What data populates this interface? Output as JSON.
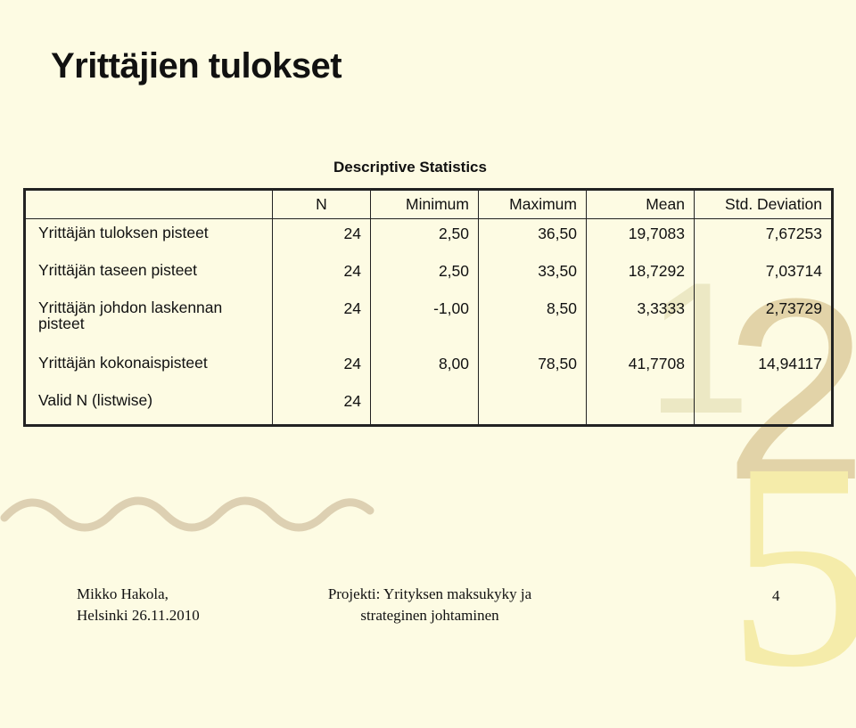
{
  "slide": {
    "title": "Yrittäjien tulokset",
    "page_number": "4"
  },
  "table": {
    "title": "Descriptive Statistics",
    "columns": [
      "N",
      "Minimum",
      "Maximum",
      "Mean",
      "Std. Deviation"
    ],
    "rows": [
      {
        "label": "Yrittäjän tuloksen pisteet",
        "values": [
          "24",
          "2,50",
          "36,50",
          "19,7083",
          "7,67253"
        ]
      },
      {
        "label": "Yrittäjän taseen pisteet",
        "values": [
          "24",
          "2,50",
          "33,50",
          "18,7292",
          "7,03714"
        ]
      },
      {
        "label": "Yrittäjän johdon laskennan pisteet",
        "values": [
          "24",
          "-1,00",
          "8,50",
          "3,3333",
          "2,73729"
        ]
      },
      {
        "label": "Yrittäjän kokonaispisteet",
        "values": [
          "24",
          "8,00",
          "78,50",
          "41,7708",
          "14,94117"
        ]
      },
      {
        "label": "Valid N (listwise)",
        "values": [
          "24",
          "",
          "",
          "",
          ""
        ]
      }
    ]
  },
  "decor": {
    "digit_1": "1",
    "digit_2": "2",
    "digit_5": "5"
  },
  "footer": {
    "author": "Mikko Hakola,",
    "place_date": "Helsinki 26.11.2010",
    "project_line1": "Projekti: Yrityksen maksukyky ja",
    "project_line2": "strateginen johtaminen"
  },
  "colors": {
    "background": "#fdfbe3",
    "wave": "#ddd0b2",
    "digit_2": "#e2d3a8",
    "digit_5": "#f5ecaa"
  }
}
